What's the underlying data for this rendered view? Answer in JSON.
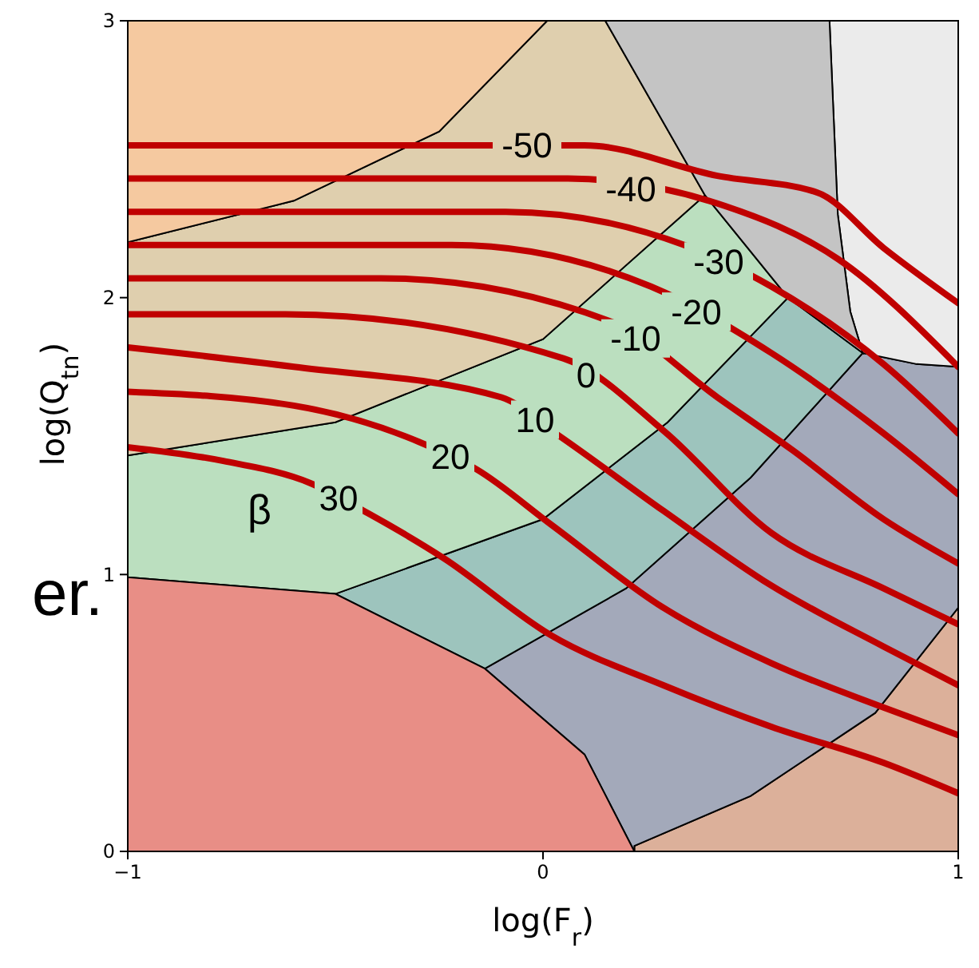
{
  "chart_data": {
    "type": "line",
    "xlabel": "log(F$_{r}$)",
    "ylabel": "log(Q$_{tn}$)",
    "xlim": [
      -1,
      1
    ],
    "ylim": [
      0,
      3
    ],
    "xticks": [
      {
        "value": -1,
        "label": "−1"
      },
      0,
      1
    ],
    "yticks": [
      0,
      1,
      2,
      3
    ],
    "annotations": [
      "β",
      "er."
    ],
    "series": [
      {
        "name": "-50",
        "color": "#c00000",
        "x": [
          -1,
          0.1,
          0.42,
          0.66,
          0.82,
          1
        ],
        "values": [
          2.55,
          2.55,
          2.44,
          2.38,
          2.18,
          1.98
        ]
      },
      {
        "name": "-40",
        "color": "#c00000",
        "x": [
          -1,
          0.06,
          0.42,
          0.71,
          1
        ],
        "values": [
          2.43,
          2.43,
          2.34,
          2.14,
          1.75
        ]
      },
      {
        "name": "-30",
        "color": "#c00000",
        "x": [
          -1,
          -0.09,
          0.34,
          0.55,
          0.82,
          1
        ],
        "values": [
          2.31,
          2.31,
          2.19,
          2.04,
          1.76,
          1.51
        ]
      },
      {
        "name": "-20",
        "color": "#c00000",
        "x": [
          -1,
          -0.22,
          0.26,
          0.55,
          0.82,
          1
        ],
        "values": [
          2.19,
          2.19,
          2.04,
          1.8,
          1.51,
          1.29
        ]
      },
      {
        "name": "-10",
        "color": "#c00000",
        "x": [
          -1,
          -0.39,
          0.17,
          0.42,
          0.6,
          0.82,
          1
        ],
        "values": [
          2.07,
          2.07,
          1.91,
          1.64,
          1.45,
          1.2,
          1.04
        ]
      },
      {
        "name": "0",
        "color": "#c00000",
        "x": [
          -1,
          -0.62,
          0.05,
          0.29,
          0.55,
          0.82,
          1
        ],
        "values": [
          1.94,
          1.94,
          1.78,
          1.52,
          1.15,
          0.95,
          0.82
        ]
      },
      {
        "name": "10",
        "color": "#c00000",
        "x": [
          -1,
          -0.6,
          -0.1,
          0.03,
          0.29,
          0.55,
          0.82,
          1
        ],
        "values": [
          1.82,
          1.75,
          1.64,
          1.51,
          1.23,
          0.96,
          0.74,
          0.6
        ]
      },
      {
        "name": "20",
        "color": "#c00000",
        "x": [
          -1,
          -0.6,
          -0.3,
          -0.16,
          0.02,
          0.29,
          0.55,
          0.82,
          1
        ],
        "values": [
          1.66,
          1.61,
          1.48,
          1.38,
          1.18,
          0.88,
          0.68,
          0.52,
          0.42
        ]
      },
      {
        "name": "30",
        "color": "#c00000",
        "x": [
          -1,
          -0.77,
          -0.56,
          -0.42,
          -0.24,
          0.02,
          0.29,
          0.55,
          0.82,
          1
        ],
        "values": [
          1.46,
          1.41,
          1.33,
          1.22,
          1.06,
          0.78,
          0.6,
          0.45,
          0.32,
          0.21
        ]
      }
    ]
  }
}
